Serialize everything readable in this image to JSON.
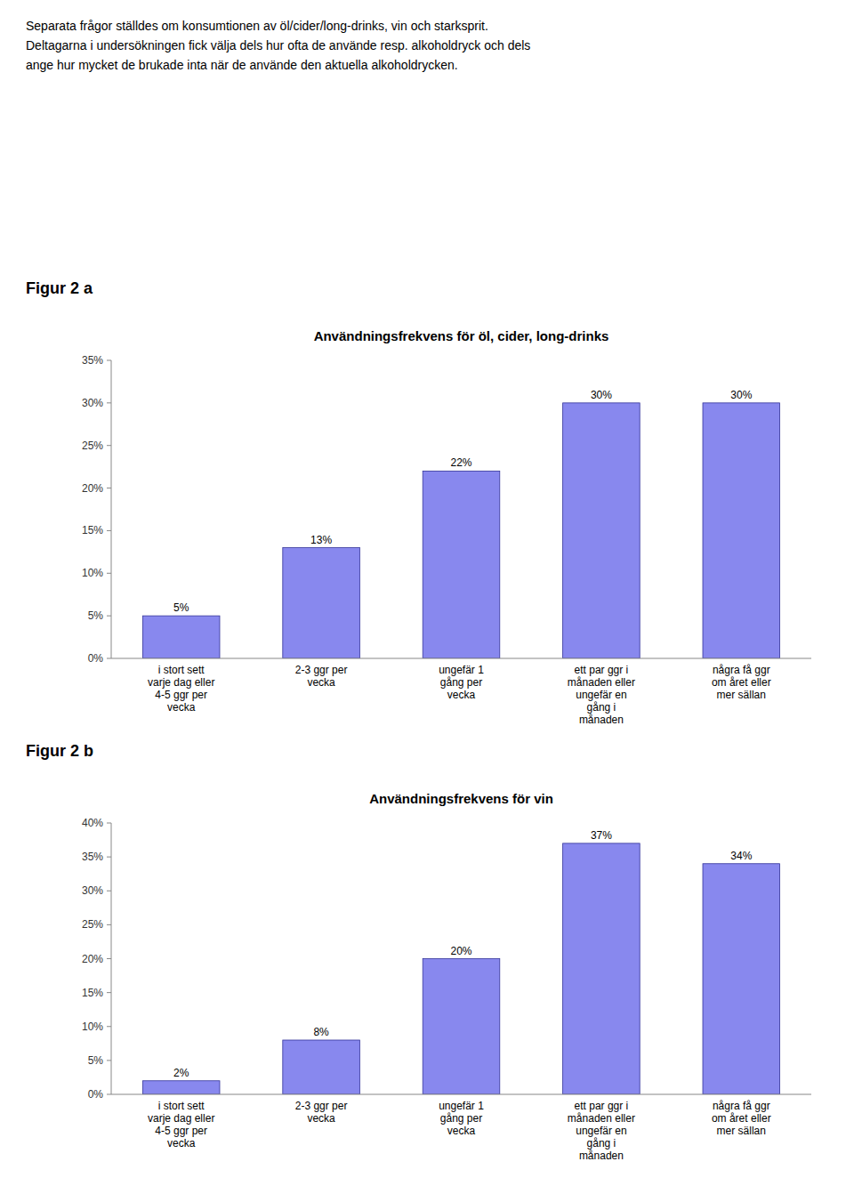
{
  "header_lines": [
    "Separata frågor ställdes om konsumtionen av öl/cider/long-drinks, vin och starksprit.",
    "Deltagarna i undersökningen fick välja dels hur ofta de använde resp. alkoholdryck och dels",
    "ange hur mycket de brukade inta när de använde den aktuella alkoholdrycken."
  ],
  "chart_data": [
    {
      "type": "bar",
      "figure_label": "Figur 2 a",
      "title": "Användningsfrekvens för öl, cider, long-drinks",
      "categories": [
        "i stort sett\nvarje dag eller\n4-5 ggr per\nvecka",
        "2-3 ggr per\nvecka",
        "ungefär 1\ngång per\nvecka",
        "ett par ggr i\nmånaden eller\nungefär en\ngång i\nmånaden",
        "några få ggr\nom året eller\nmer sällan"
      ],
      "values": [
        5,
        13,
        22,
        30,
        30
      ],
      "value_labels": [
        "5%",
        "13%",
        "22%",
        "30%",
        "30%"
      ],
      "data_labels": true,
      "color": "#8888ee",
      "ylim": [
        0,
        35
      ],
      "yticks": [
        {
          "value": 0,
          "label": "0%"
        },
        {
          "value": 5,
          "label": "5%"
        },
        {
          "value": 10,
          "label": "10%"
        },
        {
          "value": 15,
          "label": "15%"
        },
        {
          "value": 20,
          "label": "20%"
        },
        {
          "value": 25,
          "label": "25%"
        },
        {
          "value": 30,
          "label": "30%"
        },
        {
          "value": 35,
          "label": "35%"
        }
      ],
      "grid": false
    },
    {
      "type": "bar",
      "figure_label": "Figur 2 b",
      "title": "Användningsfrekvens för vin",
      "categories": [
        "i stort sett\nvarje dag eller\n4-5 ggr per\nvecka",
        "2-3 ggr per\nvecka",
        "ungefär 1\ngång per\nvecka",
        "ett par ggr i\nmånaden eller\nungefär en\ngång i\nmånaden",
        "några få ggr\nom året eller\nmer sällan"
      ],
      "values": [
        2,
        8,
        20,
        37,
        34
      ],
      "value_labels": [
        "2%",
        "8%",
        "20%",
        "37%",
        "34%"
      ],
      "data_labels": true,
      "color": "#8888ee",
      "ylim": [
        0,
        40
      ],
      "yticks": [
        {
          "value": 0,
          "label": "0%"
        },
        {
          "value": 5,
          "label": "5%"
        },
        {
          "value": 10,
          "label": "10%"
        },
        {
          "value": 15,
          "label": "15%"
        },
        {
          "value": 20,
          "label": "20%"
        },
        {
          "value": 25,
          "label": "25%"
        },
        {
          "value": 30,
          "label": "30%"
        },
        {
          "value": 35,
          "label": "35%"
        },
        {
          "value": 40,
          "label": "40%"
        }
      ],
      "grid": false
    }
  ]
}
